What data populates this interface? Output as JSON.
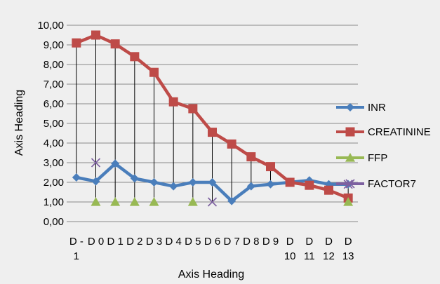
{
  "chart_data": {
    "type": "line",
    "xlabel": "Axis Heading",
    "ylabel": "Axis Heading",
    "ylim": [
      0,
      10
    ],
    "y_ticks": [
      "0,00",
      "1,00",
      "2,00",
      "3,00",
      "4,00",
      "5,00",
      "6,00",
      "7,00",
      "8,00",
      "9,00",
      "10,00"
    ],
    "grid": "horizontal",
    "legend_position": "right",
    "categories": [
      [
        "D -",
        "1"
      ],
      [
        "D 0"
      ],
      [
        "D 1"
      ],
      [
        "D 2"
      ],
      [
        "D 3"
      ],
      [
        "D 4"
      ],
      [
        "D 5"
      ],
      [
        "D 6"
      ],
      [
        "D 7"
      ],
      [
        "D 8"
      ],
      [
        "D 9"
      ],
      [
        "D",
        "10"
      ],
      [
        "D",
        "11"
      ],
      [
        "D",
        "12"
      ],
      [
        "D",
        "13"
      ]
    ],
    "series": [
      {
        "name": "INR",
        "color": "#4a7ebb",
        "marker": "diamond",
        "line": true,
        "values": [
          2.25,
          2.05,
          2.95,
          2.2,
          2.0,
          1.8,
          2.0,
          2.0,
          1.05,
          1.8,
          1.9,
          2.0,
          2.1,
          1.9,
          1.9
        ]
      },
      {
        "name": "CREATININE",
        "color": "#be4b48",
        "marker": "square",
        "line": true,
        "values": [
          9.1,
          9.5,
          9.05,
          8.4,
          7.6,
          6.1,
          5.75,
          4.55,
          3.95,
          3.3,
          2.8,
          2.0,
          1.85,
          1.6,
          1.2
        ]
      },
      {
        "name": "FFP",
        "color": "#98b954",
        "marker": "triangle",
        "line": false,
        "values": [
          null,
          1.0,
          1.0,
          1.0,
          1.0,
          null,
          1.0,
          null,
          null,
          null,
          null,
          null,
          null,
          null,
          1.0
        ]
      },
      {
        "name": "FACTOR7",
        "color": "#7d60a0",
        "marker": "x",
        "line": false,
        "values": [
          null,
          3.0,
          null,
          null,
          null,
          null,
          null,
          1.0,
          null,
          null,
          null,
          null,
          null,
          null,
          1.9
        ]
      }
    ],
    "high_low_lines": true
  }
}
